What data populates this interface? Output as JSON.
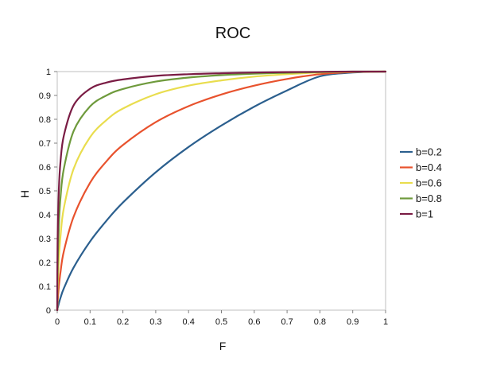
{
  "chart_data": {
    "type": "line",
    "title": "ROC",
    "xlabel": "F",
    "ylabel": "H",
    "xlim": [
      0,
      1
    ],
    "ylim": [
      0,
      1
    ],
    "x_ticks": [
      "0",
      "0.1",
      "0.2",
      "0.3",
      "0.4",
      "0.5",
      "0.6",
      "0.7",
      "0.8",
      "0.9",
      "1"
    ],
    "y_ticks": [
      "0",
      "0.1",
      "0.2",
      "0.3",
      "0.4",
      "0.5",
      "0.6",
      "0.7",
      "0.8",
      "0.9",
      "1"
    ],
    "grid": false,
    "legend_position": "right",
    "x": [
      0,
      0.001,
      0.005,
      0.01,
      0.02,
      0.05,
      0.1,
      0.15,
      0.2,
      0.3,
      0.4,
      0.5,
      0.6,
      0.7,
      0.8,
      0.9,
      1
    ],
    "series": [
      {
        "name": "b=0.2",
        "color": "#2b5f8e",
        "values": [
          0,
          0.007,
          0.029,
          0.052,
          0.091,
          0.179,
          0.288,
          0.375,
          0.451,
          0.578,
          0.684,
          0.774,
          0.853,
          0.921,
          0.98,
          0.996,
          1
        ]
      },
      {
        "name": "b=0.4",
        "color": "#e8522d",
        "values": [
          0,
          0.03,
          0.1,
          0.16,
          0.246,
          0.392,
          0.534,
          0.624,
          0.692,
          0.788,
          0.855,
          0.904,
          0.941,
          0.969,
          0.989,
          0.998,
          1
        ]
      },
      {
        "name": "b=0.6",
        "color": "#e9dd4e",
        "values": [
          0,
          0.077,
          0.212,
          0.311,
          0.427,
          0.593,
          0.725,
          0.797,
          0.845,
          0.905,
          0.941,
          0.963,
          0.979,
          0.989,
          0.996,
          0.999,
          1
        ]
      },
      {
        "name": "b=0.8",
        "color": "#6e9a3c",
        "values": [
          0,
          0.16,
          0.356,
          0.473,
          0.592,
          0.751,
          0.854,
          0.9,
          0.927,
          0.958,
          0.975,
          0.985,
          0.991,
          0.995,
          0.998,
          1.0,
          1
        ]
      },
      {
        "name": "b=1",
        "color": "#7a1c44",
        "values": [
          0,
          0.28,
          0.508,
          0.624,
          0.731,
          0.859,
          0.928,
          0.954,
          0.967,
          0.982,
          0.989,
          0.993,
          0.996,
          0.998,
          0.999,
          1.0,
          1
        ]
      }
    ]
  }
}
